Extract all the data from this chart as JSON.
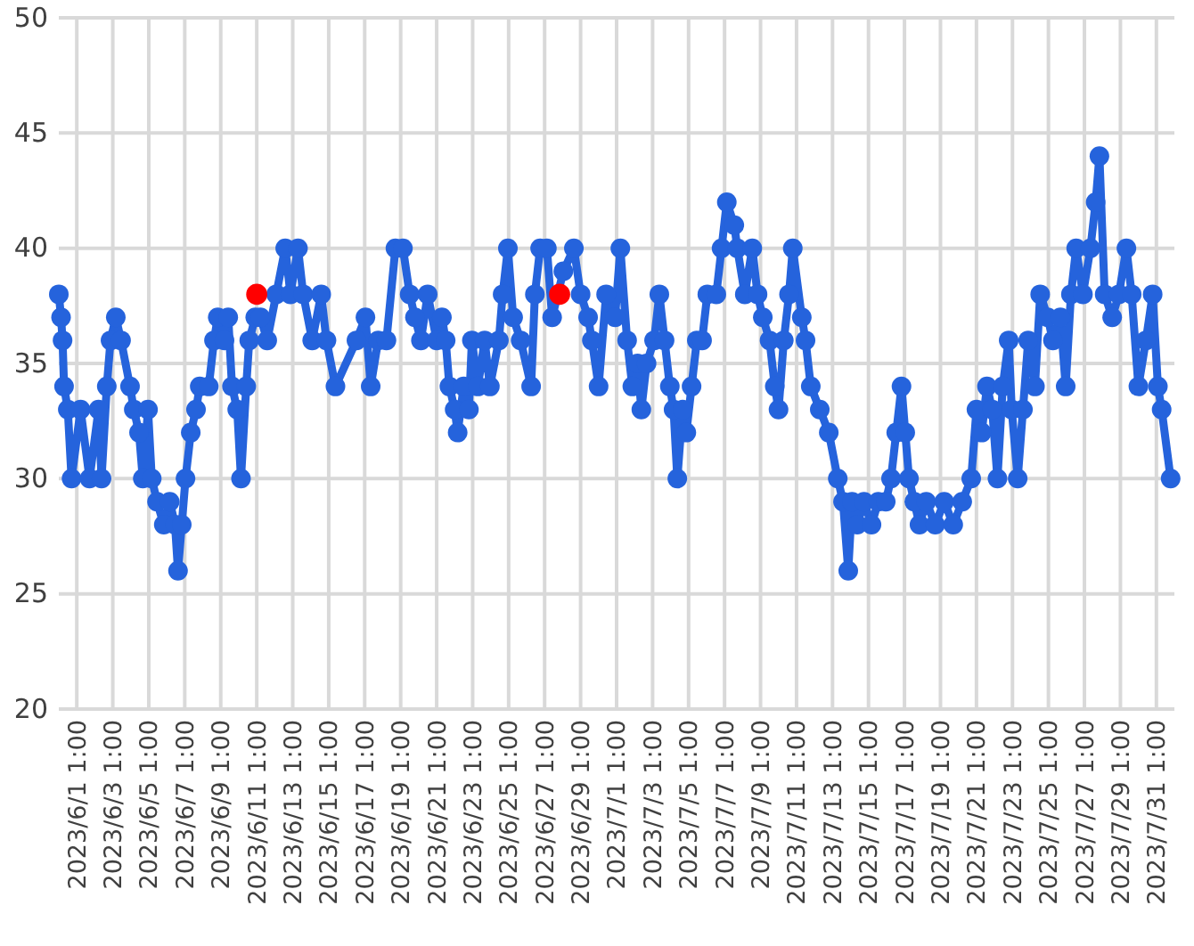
{
  "chart_data": {
    "type": "line",
    "xlim": [
      "2023-05-31T01:00",
      "2023-08-01T01:00"
    ],
    "ylim": [
      20,
      50
    ],
    "yticks": [
      20,
      25,
      30,
      35,
      40,
      45,
      50
    ],
    "xticks": [
      {
        "value": "2023-06-01T01:00",
        "label": "2023/6/1 1:00"
      },
      {
        "value": "2023-06-03T01:00",
        "label": "2023/6/3 1:00"
      },
      {
        "value": "2023-06-05T01:00",
        "label": "2023/6/5 1:00"
      },
      {
        "value": "2023-06-07T01:00",
        "label": "2023/6/7 1:00"
      },
      {
        "value": "2023-06-09T01:00",
        "label": "2023/6/9 1:00"
      },
      {
        "value": "2023-06-11T01:00",
        "label": "2023/6/11 1:00"
      },
      {
        "value": "2023-06-13T01:00",
        "label": "2023/6/13 1:00"
      },
      {
        "value": "2023-06-15T01:00",
        "label": "2023/6/15 1:00"
      },
      {
        "value": "2023-06-17T01:00",
        "label": "2023/6/17 1:00"
      },
      {
        "value": "2023-06-19T01:00",
        "label": "2023/6/19 1:00"
      },
      {
        "value": "2023-06-21T01:00",
        "label": "2023/6/21 1:00"
      },
      {
        "value": "2023-06-23T01:00",
        "label": "2023/6/23 1:00"
      },
      {
        "value": "2023-06-25T01:00",
        "label": "2023/6/25 1:00"
      },
      {
        "value": "2023-06-27T01:00",
        "label": "2023/6/27 1:00"
      },
      {
        "value": "2023-06-29T01:00",
        "label": "2023/6/29 1:00"
      },
      {
        "value": "2023-07-01T01:00",
        "label": "2023/7/1 1:00"
      },
      {
        "value": "2023-07-03T01:00",
        "label": "2023/7/3 1:00"
      },
      {
        "value": "2023-07-05T01:00",
        "label": "2023/7/5 1:00"
      },
      {
        "value": "2023-07-07T01:00",
        "label": "2023/7/7 1:00"
      },
      {
        "value": "2023-07-09T01:00",
        "label": "2023/7/9 1:00"
      },
      {
        "value": "2023-07-11T01:00",
        "label": "2023/7/11 1:00"
      },
      {
        "value": "2023-07-13T01:00",
        "label": "2023/7/13 1:00"
      },
      {
        "value": "2023-07-15T01:00",
        "label": "2023/7/15 1:00"
      },
      {
        "value": "2023-07-17T01:00",
        "label": "2023/7/17 1:00"
      },
      {
        "value": "2023-07-19T01:00",
        "label": "2023/7/19 1:00"
      },
      {
        "value": "2023-07-21T01:00",
        "label": "2023/7/21 1:00"
      },
      {
        "value": "2023-07-23T01:00",
        "label": "2023/7/23 1:00"
      },
      {
        "value": "2023-07-25T01:00",
        "label": "2023/7/25 1:00"
      },
      {
        "value": "2023-07-27T01:00",
        "label": "2023/7/27 1:00"
      },
      {
        "value": "2023-07-29T01:00",
        "label": "2023/7/29 1:00"
      },
      {
        "value": "2023-07-31T01:00",
        "label": "2023/7/31 1:00"
      }
    ],
    "grid": true,
    "marker": "circle",
    "line_style": "solid",
    "series": [
      {
        "color": "#2563dc",
        "x": [
          "2023-05-31T01:00",
          "2023-05-31T04:00",
          "2023-05-31T06:00",
          "2023-05-31T08:00",
          "2023-05-31T13:00",
          "2023-05-31T18:00",
          "2023-06-01T06:00",
          "2023-06-01T18:00",
          "2023-06-02T06:00",
          "2023-06-02T10:00",
          "2023-06-02T17:00",
          "2023-06-02T22:00",
          "2023-06-03T05:00",
          "2023-06-03T12:00",
          "2023-06-04T00:00",
          "2023-06-04T05:00",
          "2023-06-04T12:00",
          "2023-06-04T17:00",
          "2023-06-05T00:00",
          "2023-06-05T05:00",
          "2023-06-05T12:00",
          "2023-06-05T21:00",
          "2023-06-06T05:00",
          "2023-06-06T12:00",
          "2023-06-06T16:00",
          "2023-06-06T21:00",
          "2023-06-07T02:00",
          "2023-06-07T09:00",
          "2023-06-07T16:00",
          "2023-06-07T21:00",
          "2023-06-08T09:00",
          "2023-06-08T16:00",
          "2023-06-08T21:00",
          "2023-06-09T06:00",
          "2023-06-09T11:00",
          "2023-06-09T16:00",
          "2023-06-09T23:00",
          "2023-06-10T04:00",
          "2023-06-10T11:00",
          "2023-06-10T15:00",
          "2023-06-10T23:00",
          "2023-06-11T06:00",
          "2023-06-11T15:00",
          "2023-06-12T03:00",
          "2023-06-12T15:00",
          "2023-06-12T22:00",
          "2023-06-13T08:00",
          "2023-06-13T15:00",
          "2023-06-14T03:00",
          "2023-06-14T15:00",
          "2023-06-14T22:00",
          "2023-06-15T10:00",
          "2023-06-16T14:00",
          "2023-06-17T02:00",
          "2023-06-17T09:00",
          "2023-06-17T19:00",
          "2023-06-18T06:00",
          "2023-06-18T18:00",
          "2023-06-19T04:00",
          "2023-06-19T13:00",
          "2023-06-19T20:00",
          "2023-06-20T04:00",
          "2023-06-20T13:00",
          "2023-06-21T01:00",
          "2023-06-21T08:00",
          "2023-06-21T13:00",
          "2023-06-21T18:00",
          "2023-06-22T01:00",
          "2023-06-22T05:00",
          "2023-06-22T13:00",
          "2023-06-22T20:00",
          "2023-06-23T00:00",
          "2023-06-23T08:00",
          "2023-06-23T17:00",
          "2023-06-24T00:00",
          "2023-06-24T12:00",
          "2023-06-24T17:00",
          "2023-06-25T00:00",
          "2023-06-25T07:00",
          "2023-06-25T17:00",
          "2023-06-26T07:00",
          "2023-06-26T12:00",
          "2023-06-26T19:00",
          "2023-06-27T04:00",
          "2023-06-27T11:00",
          "2023-06-28T02:00",
          "2023-06-28T16:00",
          "2023-06-29T01:00",
          "2023-06-29T11:00",
          "2023-06-29T16:00",
          "2023-06-30T01:00",
          "2023-06-30T11:00",
          "2023-06-30T23:00",
          "2023-07-01T06:00",
          "2023-07-01T15:00",
          "2023-07-01T22:00",
          "2023-07-02T05:00",
          "2023-07-02T10:00",
          "2023-07-02T17:00",
          "2023-07-03T03:00",
          "2023-07-03T10:00",
          "2023-07-03T17:00",
          "2023-07-04T00:00",
          "2023-07-04T05:00",
          "2023-07-04T10:00",
          "2023-07-04T17:00",
          "2023-07-04T22:00",
          "2023-07-05T05:00",
          "2023-07-05T12:00",
          "2023-07-05T19:00",
          "2023-07-06T02:00",
          "2023-07-06T14:00",
          "2023-07-06T21:00",
          "2023-07-07T04:00",
          "2023-07-07T14:00",
          "2023-07-07T18:00",
          "2023-07-08T04:00",
          "2023-07-08T14:00",
          "2023-07-08T21:00",
          "2023-07-09T04:00",
          "2023-07-09T13:00",
          "2023-07-09T20:00",
          "2023-07-10T01:00",
          "2023-07-10T08:00",
          "2023-07-10T15:00",
          "2023-07-10T20:00",
          "2023-07-11T08:00",
          "2023-07-11T13:00",
          "2023-07-11T20:00",
          "2023-07-12T08:00",
          "2023-07-12T20:00",
          "2023-07-13T08:00",
          "2023-07-13T15:00",
          "2023-07-13T22:00",
          "2023-07-14T03:00",
          "2023-07-14T10:00",
          "2023-07-14T19:00",
          "2023-07-15T05:00",
          "2023-07-15T14:00",
          "2023-07-16T00:00",
          "2023-07-16T07:00",
          "2023-07-16T14:00",
          "2023-07-16T21:00",
          "2023-07-17T02:00",
          "2023-07-17T07:00",
          "2023-07-17T14:00",
          "2023-07-17T21:00",
          "2023-07-18T06:00",
          "2023-07-18T18:00",
          "2023-07-19T06:00",
          "2023-07-19T18:00",
          "2023-07-20T06:00",
          "2023-07-20T18:00",
          "2023-07-21T01:00",
          "2023-07-21T08:00",
          "2023-07-21T15:00",
          "2023-07-21T22:00",
          "2023-07-22T05:00",
          "2023-07-22T12:00",
          "2023-07-22T20:00",
          "2023-07-23T00:00",
          "2023-07-23T08:00",
          "2023-07-23T15:00",
          "2023-07-23T22:00",
          "2023-07-24T07:00",
          "2023-07-24T14:00",
          "2023-07-25T00:00",
          "2023-07-25T07:00",
          "2023-07-25T17:00",
          "2023-07-26T00:00",
          "2023-07-26T07:00",
          "2023-07-26T14:00",
          "2023-07-26T23:00",
          "2023-07-27T09:00",
          "2023-07-27T16:00",
          "2023-07-27T21:00",
          "2023-07-28T04:00",
          "2023-07-28T14:00",
          "2023-07-28T23:00",
          "2023-07-29T09:00",
          "2023-07-29T16:00",
          "2023-07-30T01:00",
          "2023-07-30T11:00",
          "2023-07-30T20:00",
          "2023-07-31T03:00",
          "2023-07-31T08:00",
          "2023-07-31T20:00"
        ],
        "values": [
          38,
          37,
          36,
          34,
          33,
          30,
          33,
          30,
          33,
          30,
          34,
          36,
          37,
          36,
          34,
          33,
          32,
          30,
          33,
          30,
          29,
          28,
          29,
          28,
          26,
          28,
          30,
          32,
          33,
          34,
          34,
          36,
          37,
          36,
          37,
          34,
          33,
          30,
          34,
          36,
          37,
          37,
          36,
          38,
          40,
          38,
          40,
          38,
          36,
          38,
          36,
          34,
          36,
          37,
          34,
          36,
          36,
          40,
          40,
          38,
          37,
          36,
          38,
          36,
          37,
          36,
          34,
          33,
          32,
          34,
          33,
          36,
          34,
          36,
          34,
          36,
          38,
          40,
          37,
          36,
          34,
          38,
          40,
          40,
          37,
          39,
          40,
          38,
          37,
          36,
          34,
          38,
          37,
          40,
          36,
          34,
          35,
          33,
          35,
          36,
          38,
          36,
          34,
          33,
          30,
          33,
          32,
          34,
          36,
          36,
          38,
          38,
          40,
          42,
          41,
          40,
          38,
          40,
          38,
          37,
          36,
          34,
          33,
          36,
          38,
          40,
          37,
          36,
          34,
          33,
          32,
          30,
          29,
          26,
          29,
          28,
          29,
          28,
          29,
          29,
          30,
          32,
          34,
          32,
          30,
          29,
          28,
          29,
          28,
          29,
          28,
          29,
          30,
          33,
          32,
          34,
          33,
          30,
          34,
          36,
          33,
          30,
          33,
          36,
          34,
          38,
          37,
          36,
          37,
          34,
          38,
          40,
          38,
          40,
          42,
          44,
          38,
          37,
          38,
          40,
          38,
          34,
          36,
          38,
          34,
          33,
          30
        ]
      },
      {
        "type": "scatter",
        "color": "#ff0000",
        "x": [
          "2023-06-11T01:00",
          "2023-06-27T21:00"
        ],
        "values": [
          38,
          38
        ]
      }
    ]
  }
}
